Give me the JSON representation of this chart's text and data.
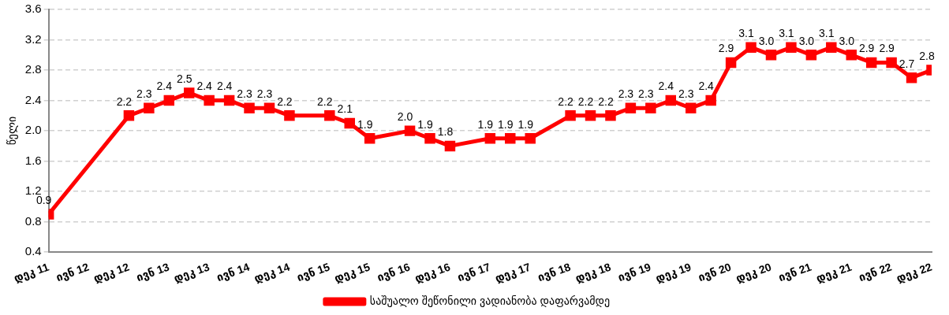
{
  "chart_data": {
    "type": "line",
    "ylabel": "წელი",
    "x": [
      "2011-12",
      "2012-12",
      "2013-03",
      "2013-06",
      "2013-09",
      "2013-12",
      "2014-03",
      "2014-06",
      "2014-09",
      "2014-12",
      "2015-06",
      "2015-09",
      "2015-12",
      "2016-06",
      "2016-09",
      "2016-12",
      "2017-06",
      "2017-09",
      "2017-12",
      "2018-06",
      "2018-09",
      "2018-12",
      "2019-03",
      "2019-06",
      "2019-09",
      "2019-12",
      "2020-03",
      "2020-06",
      "2020-09",
      "2020-12",
      "2021-03",
      "2021-06",
      "2021-09",
      "2021-12",
      "2022-03",
      "2022-06",
      "2022-09",
      "2022-12"
    ],
    "series": [
      {
        "name": "საშუალო შეწონილი ვადიანობა დაფარვამდე",
        "color": "#ff0000",
        "value_labels": [
          "0.9",
          "2.2",
          "2.3",
          "2.4",
          "2.5",
          "2.4",
          "2.4",
          "2.3",
          "2.3",
          "2.2",
          "2.2",
          "2.1",
          "1.9",
          "2.0",
          "1.9",
          "1.8",
          "1.9",
          "1.9",
          "1.9",
          "2.2",
          "2.2",
          "2.2",
          "2.3",
          "2.3",
          "2.4",
          "2.3",
          "2.4",
          "2.9",
          "3.1",
          "3.0",
          "3.1",
          "3.0",
          "3.1",
          "3.0",
          "2.9",
          "2.9",
          "2.7",
          "2.8"
        ],
        "values": [
          0.9,
          2.2,
          2.3,
          2.4,
          2.5,
          2.4,
          2.4,
          2.3,
          2.3,
          2.2,
          2.2,
          2.1,
          1.9,
          2.0,
          1.9,
          1.8,
          1.9,
          1.9,
          1.9,
          2.2,
          2.2,
          2.2,
          2.3,
          2.3,
          2.4,
          2.3,
          2.4,
          2.9,
          3.1,
          3.0,
          3.1,
          3.0,
          3.1,
          3.0,
          2.9,
          2.9,
          2.7,
          2.8
        ]
      }
    ],
    "xlim": [
      "2011-12",
      "2022-12"
    ],
    "xticks": [
      {
        "value": "2011-12",
        "label": "დეკ 11"
      },
      {
        "value": "2012-06",
        "label": "ივნ 12"
      },
      {
        "value": "2012-12",
        "label": "დეკ 12"
      },
      {
        "value": "2013-06",
        "label": "ივნ 13"
      },
      {
        "value": "2013-12",
        "label": "დეკ 13"
      },
      {
        "value": "2014-06",
        "label": "ივნ 14"
      },
      {
        "value": "2014-12",
        "label": "დეკ 14"
      },
      {
        "value": "2015-06",
        "label": "ივნ 15"
      },
      {
        "value": "2015-12",
        "label": "დეკ 15"
      },
      {
        "value": "2016-06",
        "label": "ივნ 16"
      },
      {
        "value": "2016-12",
        "label": "დეკ 16"
      },
      {
        "value": "2017-06",
        "label": "ივნ 17"
      },
      {
        "value": "2017-12",
        "label": "დეკ 17"
      },
      {
        "value": "2018-06",
        "label": "ივნ 18"
      },
      {
        "value": "2018-12",
        "label": "დეკ 18"
      },
      {
        "value": "2019-06",
        "label": "ივნ 19"
      },
      {
        "value": "2019-12",
        "label": "დეკ 19"
      },
      {
        "value": "2020-06",
        "label": "ივნ 20"
      },
      {
        "value": "2020-12",
        "label": "დეკ 20"
      },
      {
        "value": "2021-06",
        "label": "ივნ 21"
      },
      {
        "value": "2021-12",
        "label": "დეკ 21"
      },
      {
        "value": "2022-06",
        "label": "ივნ 22"
      },
      {
        "value": "2022-12",
        "label": "დეკ 22"
      }
    ],
    "ylim": [
      0.4,
      3.6
    ],
    "yticks": [
      {
        "value": 0.4,
        "label": "0.4"
      },
      {
        "value": 0.8,
        "label": "0.8"
      },
      {
        "value": 1.2,
        "label": "1.2"
      },
      {
        "value": 1.6,
        "label": "1.6"
      },
      {
        "value": 2.0,
        "label": "2.0"
      },
      {
        "value": 2.4,
        "label": "2.4"
      },
      {
        "value": 2.8,
        "label": "2.8"
      },
      {
        "value": 3.2,
        "label": "3.2"
      },
      {
        "value": 3.6,
        "label": "3.6"
      }
    ],
    "grid": "y",
    "legend": "bottom",
    "marker": "square",
    "line_style": "solid"
  }
}
